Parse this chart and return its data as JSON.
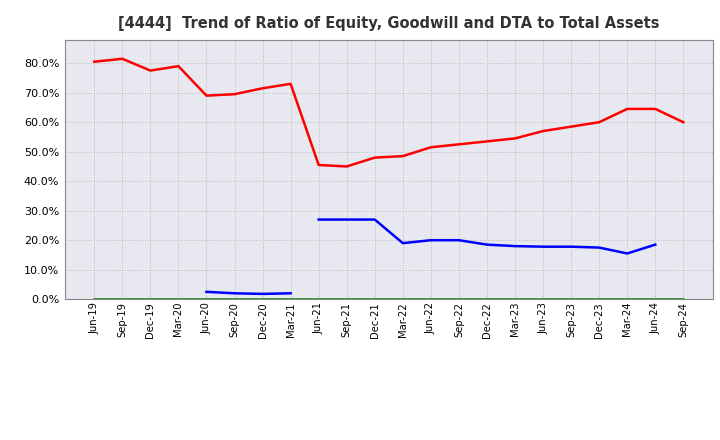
{
  "title": "[4444]  Trend of Ratio of Equity, Goodwill and DTA to Total Assets",
  "x_labels": [
    "Jun-19",
    "Sep-19",
    "Dec-19",
    "Mar-20",
    "Jun-20",
    "Sep-20",
    "Dec-20",
    "Mar-21",
    "Jun-21",
    "Sep-21",
    "Dec-21",
    "Mar-22",
    "Jun-22",
    "Sep-22",
    "Dec-22",
    "Mar-23",
    "Jun-23",
    "Sep-23",
    "Dec-23",
    "Mar-24",
    "Jun-24",
    "Sep-24"
  ],
  "equity": [
    0.805,
    0.815,
    0.775,
    0.79,
    0.69,
    0.695,
    0.715,
    0.73,
    0.455,
    0.45,
    0.48,
    0.485,
    0.515,
    0.525,
    0.535,
    0.545,
    0.57,
    0.585,
    0.6,
    0.645,
    0.645,
    0.6
  ],
  "goodwill": [
    null,
    null,
    null,
    null,
    0.025,
    0.02,
    0.018,
    0.02,
    0.27,
    0.27,
    0.27,
    0.19,
    0.2,
    0.2,
    0.185,
    0.18,
    0.178,
    0.178,
    0.175,
    0.155,
    0.185,
    null
  ],
  "dta": [
    0.0,
    0.0,
    0.0,
    0.0,
    0.0,
    0.0,
    0.0,
    0.0,
    0.0,
    0.0,
    0.0,
    0.0,
    0.0,
    0.0,
    0.0,
    0.0,
    0.0,
    0.0,
    0.0,
    0.0,
    0.0,
    0.0
  ],
  "equity_color": "#FF0000",
  "goodwill_color": "#0000FF",
  "dta_color": "#008000",
  "ylim": [
    0.0,
    0.88
  ],
  "yticks": [
    0.0,
    0.1,
    0.2,
    0.3,
    0.4,
    0.5,
    0.6,
    0.7,
    0.8
  ],
  "background_color": "#FFFFFF",
  "plot_bg_color": "#E8E8F0",
  "grid_color": "#BBBBBB",
  "title_color": "#333333",
  "spine_color": "#888888"
}
